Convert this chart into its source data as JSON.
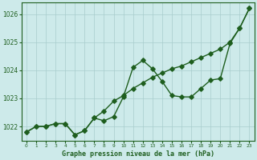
{
  "x": [
    0,
    1,
    2,
    3,
    4,
    5,
    6,
    7,
    8,
    9,
    10,
    11,
    12,
    13,
    14,
    15,
    16,
    17,
    18,
    19,
    20,
    21,
    22,
    23
  ],
  "jagged_line": [
    1021.8,
    1022.0,
    1022.0,
    1022.1,
    1022.1,
    1021.7,
    1021.85,
    1022.3,
    1022.2,
    1022.35,
    1023.05,
    1024.1,
    1024.35,
    1024.05,
    1023.6,
    1023.1,
    1023.05,
    1023.05,
    1023.35,
    1023.65,
    1023.7,
    1024.95,
    1025.5,
    1026.2
  ],
  "smooth_line": [
    1021.8,
    1022.0,
    1022.0,
    1022.1,
    1022.1,
    1021.7,
    1021.85,
    1022.3,
    1022.55,
    1022.9,
    1023.1,
    1023.35,
    1023.55,
    1023.75,
    1023.9,
    1024.05,
    1024.15,
    1024.3,
    1024.45,
    1024.6,
    1024.75,
    1025.0,
    1025.5,
    1026.2
  ],
  "ylim": [
    1021.5,
    1026.4
  ],
  "yticks": [
    1022,
    1023,
    1024,
    1025,
    1026
  ],
  "xlim": [
    -0.5,
    23.5
  ],
  "line_color": "#1e5e1e",
  "bg_color": "#cdeaea",
  "grid_color": "#a8cccc",
  "xlabel": "Graphe pression niveau de la mer (hPa)",
  "markersize": 2.8,
  "linewidth": 1.0
}
